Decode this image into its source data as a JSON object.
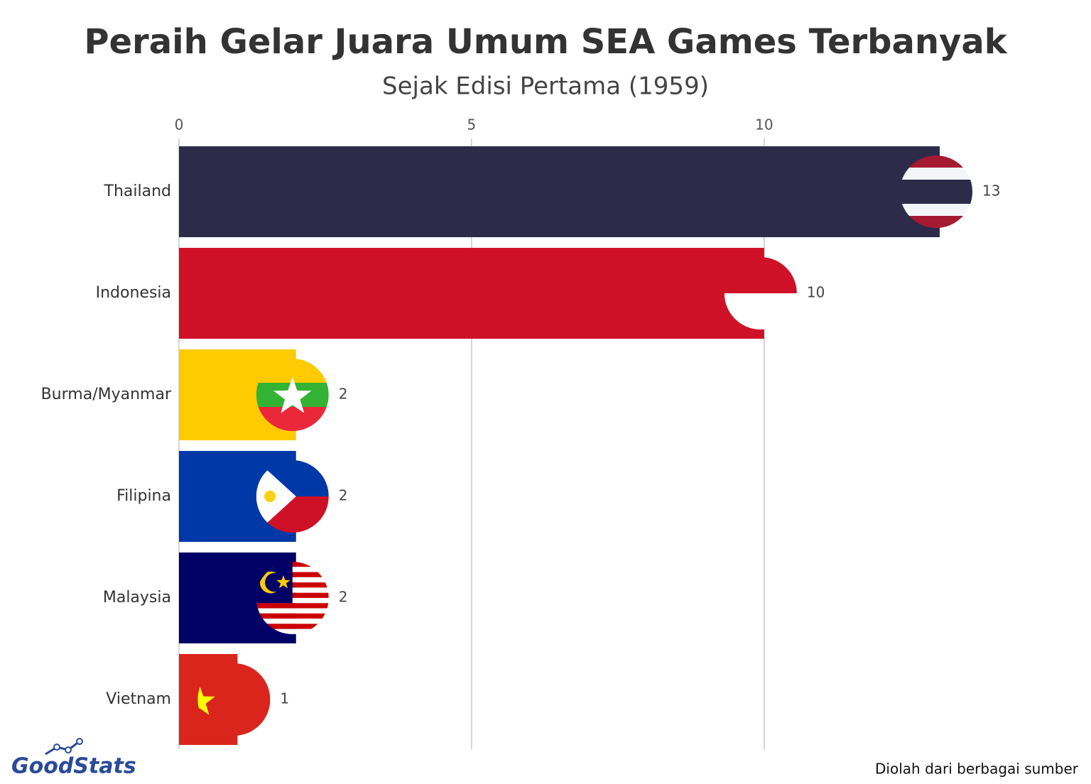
{
  "chart_data": {
    "type": "hbar",
    "title": "Peraih Gelar Juara Umum SEA Games Terbanyak",
    "subtitle": "Sejak Edisi Pertama (1959)",
    "categories": [
      "Thailand",
      "Indonesia",
      "Burma/Myanmar",
      "Filipina",
      "Malaysia",
      "Vietnam"
    ],
    "values": [
      13,
      10,
      2,
      2,
      2,
      1
    ],
    "colors": [
      "#2e2b4a",
      "#ce1126",
      "#fecb00",
      "#0038a8",
      "#010066",
      "#da251d"
    ],
    "xlim": [
      0,
      13
    ],
    "xticks": [
      0,
      5,
      10
    ],
    "grid": true,
    "logo": "GoodStats",
    "source": "Diolah dari berbagai sumber"
  }
}
